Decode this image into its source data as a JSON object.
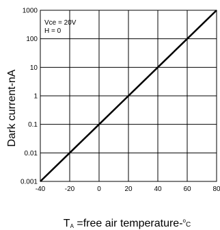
{
  "chart_data": {
    "type": "line",
    "title": "",
    "ylabel": "Dark current-nA",
    "xlabel": {
      "symbol_main": "T",
      "symbol_sub": "A",
      "text": " =free air temperature-",
      "unit_sup": "o",
      "unit": "C"
    },
    "xlim": [
      -40,
      80
    ],
    "ylim": [
      0.001,
      1000
    ],
    "yscale": "log",
    "x_ticks": [
      -40,
      -20,
      0,
      20,
      40,
      60,
      80
    ],
    "x_tick_labels": [
      "-40",
      "-20",
      "0",
      "20",
      "40",
      "60",
      "80"
    ],
    "y_ticks": [
      0.001,
      0.01,
      0.1,
      1,
      10,
      100,
      1000
    ],
    "y_tick_labels": [
      "0.001",
      "0.01",
      "0.1",
      "1",
      "10",
      "100",
      "1000"
    ],
    "grid": true,
    "annotations": [
      "Vce = 20V",
      "H = 0"
    ],
    "series": [
      {
        "x": [
          -40,
          -20,
          0,
          20,
          40,
          60,
          80
        ],
        "y": [
          0.001,
          0.01,
          0.1,
          1,
          10,
          100,
          1000
        ],
        "color": "#000000"
      }
    ]
  }
}
